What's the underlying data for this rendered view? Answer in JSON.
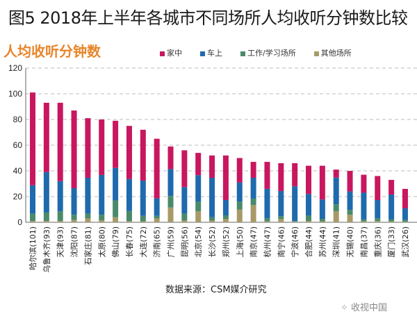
{
  "chart_data": {
    "type": "bar",
    "stacked": true,
    "title": "图5 2018年上半年各城市不同场所人均收听分钟数比较",
    "ylabel": "人均收听分钟数",
    "ylim": [
      0,
      120
    ],
    "yticks": [
      0,
      20,
      40,
      60,
      80,
      100,
      120
    ],
    "grid": true,
    "legend_position": "top",
    "categories": [
      "哈尔滨(101)",
      "乌鲁木齐(93)",
      "天津(93)",
      "沈阳(87)",
      "石家庄(81)",
      "太原(80)",
      "佛山(79)",
      "长春(75)",
      "大连(72)",
      "济南(65)",
      "广州(59)",
      "昆明(56)",
      "北京(54)",
      "长沙(52)",
      "郑州(52)",
      "上海(50)",
      "南京(47)",
      "杭州(47)",
      "南宁(46)",
      "宁波(46)",
      "合肥(44)",
      "苏州(44)",
      "深圳(41)",
      "无锡(40)",
      "南昌(37)",
      "重庆(36)",
      "厦门(33)",
      "武汉(26)"
    ],
    "series": [
      {
        "name": "其他场所",
        "color": "#a89a68",
        "values": [
          1,
          1,
          1,
          1.8,
          3,
          1.6,
          4,
          1,
          0.7,
          2.9,
          11.5,
          1.4,
          8.5,
          1.3,
          2.5,
          10,
          13.5,
          0.7,
          2.5,
          0.4,
          1,
          0.7,
          8.6,
          5.8,
          0.7,
          1,
          0.7,
          0.4
        ]
      },
      {
        "name": "工作/学习场所",
        "color": "#4a8a6a",
        "values": [
          5.8,
          6.6,
          7.6,
          4,
          3.8,
          4.2,
          13,
          7.8,
          4.3,
          2.1,
          8.9,
          5.3,
          7.7,
          2.7,
          2.9,
          6.2,
          4.9,
          2.5,
          2.2,
          0.6,
          4.4,
          2,
          5.4,
          3.9,
          1.5,
          2.2,
          1.5,
          1.4
        ]
      },
      {
        "name": "车上",
        "color": "#1f6aad",
        "values": [
          22,
          31.4,
          23.4,
          20.7,
          27.8,
          31,
          25.3,
          24.9,
          27.4,
          13.6,
          21,
          20.7,
          20.4,
          30.6,
          11.9,
          14.8,
          16.2,
          22.8,
          19.6,
          27,
          16.6,
          15,
          20.8,
          14.3,
          20.8,
          14.1,
          19.4,
          9
        ]
      },
      {
        "name": "家中",
        "color": "#c8175f",
        "values": [
          72.2,
          54,
          61,
          60.5,
          46.4,
          43.2,
          36.7,
          41.3,
          39.6,
          46.4,
          17.6,
          28.6,
          17.4,
          17.4,
          34.7,
          19,
          12.4,
          21,
          21.7,
          18,
          22,
          26.3,
          6.2,
          16,
          14,
          18.7,
          11.4,
          15.2
        ]
      }
    ],
    "legend_order": [
      "家中",
      "车上",
      "工作/学习场所",
      "其他场所"
    ],
    "source": "数据来源：CSM媒介研究"
  },
  "watermark": "收视中国"
}
